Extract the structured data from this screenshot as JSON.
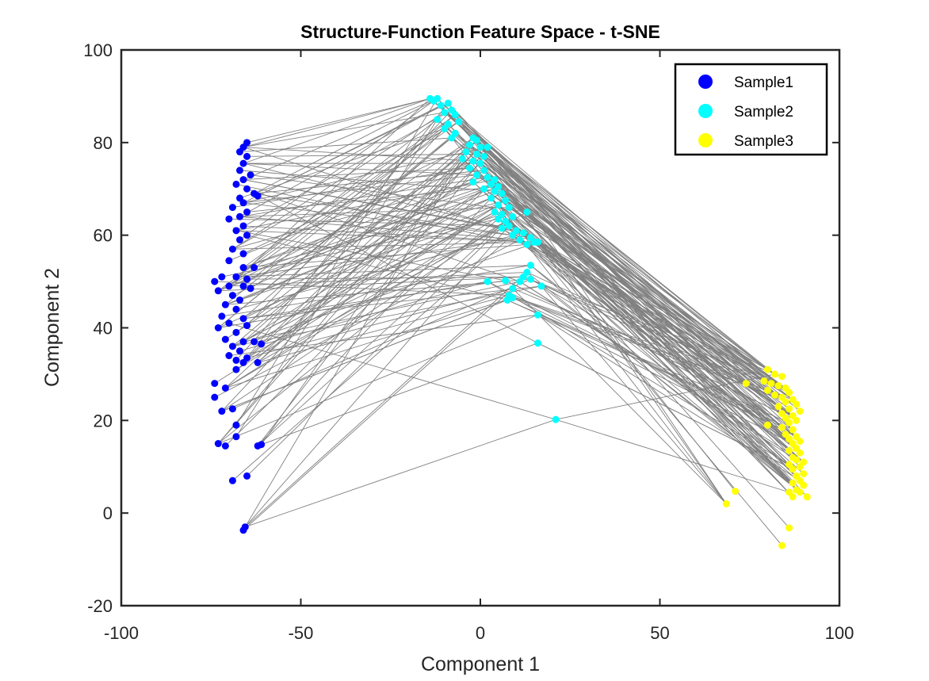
{
  "chart_data": {
    "type": "scatter",
    "title": "Structure-Function Feature Space - t-SNE",
    "xlabel": "Component 1",
    "ylabel": "Component 2",
    "xlim": [
      -100,
      100
    ],
    "ylim": [
      -20,
      100
    ],
    "xticks": [
      -100,
      -50,
      0,
      50,
      100
    ],
    "yticks": [
      -20,
      0,
      20,
      40,
      60,
      80,
      100
    ],
    "grid": false,
    "legend_position": "top-right",
    "connector_color": "#808080",
    "series": [
      {
        "name": "Sample1",
        "color": "#0000ff",
        "points": [
          [
            -65,
            80
          ],
          [
            -66,
            79
          ],
          [
            -67,
            78
          ],
          [
            -65,
            77
          ],
          [
            -66,
            75.5
          ],
          [
            -67,
            74
          ],
          [
            -64,
            73
          ],
          [
            -66,
            72
          ],
          [
            -68,
            71
          ],
          [
            -65,
            70
          ],
          [
            -63,
            69
          ],
          [
            -67,
            68
          ],
          [
            -62,
            68.5
          ],
          [
            -66,
            67
          ],
          [
            -69,
            66
          ],
          [
            -65,
            65
          ],
          [
            -67,
            64
          ],
          [
            -70,
            63.5
          ],
          [
            -66,
            62
          ],
          [
            -68,
            61
          ],
          [
            -65,
            60
          ],
          [
            -67,
            59
          ],
          [
            -69,
            57
          ],
          [
            -66,
            56
          ],
          [
            -70,
            54.5
          ],
          [
            -66,
            53
          ],
          [
            -63,
            53
          ],
          [
            -72,
            51
          ],
          [
            -68,
            51
          ],
          [
            -65,
            50.5
          ],
          [
            -74,
            50
          ],
          [
            -70,
            49
          ],
          [
            -66,
            49
          ],
          [
            -64,
            48.5
          ],
          [
            -73,
            48
          ],
          [
            -69,
            47
          ],
          [
            -67,
            46
          ],
          [
            -71,
            45
          ],
          [
            -68,
            44
          ],
          [
            -72,
            42.5
          ],
          [
            -66,
            42
          ],
          [
            -70,
            41
          ],
          [
            -65,
            40.5
          ],
          [
            -73,
            40
          ],
          [
            -68,
            39
          ],
          [
            -71,
            37.5
          ],
          [
            -66,
            37
          ],
          [
            -63,
            37
          ],
          [
            -61,
            36.5
          ],
          [
            -69,
            36
          ],
          [
            -67,
            35
          ],
          [
            -70,
            34
          ],
          [
            -65,
            33.5
          ],
          [
            -68,
            33
          ],
          [
            -66,
            32.5
          ],
          [
            -62,
            32.5
          ],
          [
            -68,
            31
          ],
          [
            -74,
            28
          ],
          [
            -71,
            27
          ],
          [
            -74,
            25
          ],
          [
            -72,
            22
          ],
          [
            -69,
            22.5
          ],
          [
            -68,
            19
          ],
          [
            -73,
            15
          ],
          [
            -71,
            14.5
          ],
          [
            -68,
            16.5
          ],
          [
            -62,
            14.5
          ],
          [
            -61,
            14.8
          ],
          [
            -65,
            8
          ],
          [
            -69,
            7
          ],
          [
            -65.5,
            -3
          ],
          [
            -66,
            -3.7
          ]
        ]
      },
      {
        "name": "Sample2",
        "color": "#00ffff",
        "points": [
          [
            -14,
            89.5
          ],
          [
            -13,
            89
          ],
          [
            -12,
            89.5
          ],
          [
            -11,
            88
          ],
          [
            -9,
            88.5
          ],
          [
            -8,
            87
          ],
          [
            -10,
            86.5
          ],
          [
            -7,
            86
          ],
          [
            -12,
            85
          ],
          [
            -9,
            84
          ],
          [
            -6,
            84.5
          ],
          [
            -10,
            83
          ],
          [
            -7,
            82
          ],
          [
            -8,
            81
          ],
          [
            -2,
            81
          ],
          [
            -1,
            80.5
          ],
          [
            -3,
            79.5
          ],
          [
            0,
            79
          ],
          [
            2,
            79
          ],
          [
            -4,
            78
          ],
          [
            -1,
            77.5
          ],
          [
            1,
            77
          ],
          [
            -5,
            76.5
          ],
          [
            -2,
            76
          ],
          [
            0,
            75.5
          ],
          [
            -3,
            74.5
          ],
          [
            1,
            74
          ],
          [
            -1,
            73
          ],
          [
            2,
            72.5
          ],
          [
            4,
            72
          ],
          [
            -2,
            71.5
          ],
          [
            3,
            71
          ],
          [
            5,
            70.5
          ],
          [
            1,
            70
          ],
          [
            4,
            69.5
          ],
          [
            6,
            69
          ],
          [
            3,
            68
          ],
          [
            7,
            67.5
          ],
          [
            5,
            66.5
          ],
          [
            8,
            66
          ],
          [
            4,
            65
          ],
          [
            6,
            64.5
          ],
          [
            9,
            64
          ],
          [
            5,
            63.5
          ],
          [
            7,
            63
          ],
          [
            13,
            65
          ],
          [
            8,
            62
          ],
          [
            6,
            61.5
          ],
          [
            10,
            61
          ],
          [
            12,
            60.5
          ],
          [
            9,
            60
          ],
          [
            14,
            59.5
          ],
          [
            11,
            59
          ],
          [
            15,
            58.5
          ],
          [
            16,
            58.5
          ],
          [
            13,
            58
          ],
          [
            14,
            53.5
          ],
          [
            13,
            52
          ],
          [
            12,
            51
          ],
          [
            14,
            50.5
          ],
          [
            2,
            50
          ],
          [
            7,
            50.2
          ],
          [
            11,
            50
          ],
          [
            17,
            49
          ],
          [
            9,
            48.5
          ],
          [
            8,
            47
          ],
          [
            9,
            46.5
          ],
          [
            7.5,
            46
          ],
          [
            16,
            42.8
          ],
          [
            16,
            36.7
          ],
          [
            21,
            20.2
          ]
        ]
      },
      {
        "name": "Sample3",
        "color": "#ffff00",
        "points": [
          [
            80,
            31
          ],
          [
            82,
            30
          ],
          [
            84,
            29.5
          ],
          [
            79,
            28.5
          ],
          [
            81,
            28
          ],
          [
            83,
            27.5
          ],
          [
            85,
            27
          ],
          [
            74,
            28
          ],
          [
            80,
            26.5
          ],
          [
            86,
            26
          ],
          [
            82,
            25.5
          ],
          [
            84,
            25
          ],
          [
            87,
            24.5
          ],
          [
            85,
            24
          ],
          [
            88,
            23.5
          ],
          [
            83,
            23
          ],
          [
            86,
            22.5
          ],
          [
            89,
            22
          ],
          [
            84,
            21.5
          ],
          [
            87,
            21
          ],
          [
            85,
            20.5
          ],
          [
            88,
            20
          ],
          [
            80,
            19
          ],
          [
            86,
            19.5
          ],
          [
            84,
            18.5
          ],
          [
            87,
            18
          ],
          [
            85,
            17
          ],
          [
            88,
            16.5
          ],
          [
            86,
            16
          ],
          [
            89,
            15.5
          ],
          [
            87,
            15
          ],
          [
            88,
            14
          ],
          [
            86,
            13.5
          ],
          [
            89,
            13
          ],
          [
            87,
            12
          ],
          [
            88,
            11.5
          ],
          [
            90,
            11
          ],
          [
            86,
            10.5
          ],
          [
            89,
            10
          ],
          [
            87,
            9.5
          ],
          [
            90,
            8.5
          ],
          [
            88,
            8
          ],
          [
            89,
            7
          ],
          [
            87,
            6.5
          ],
          [
            90,
            6
          ],
          [
            88,
            5
          ],
          [
            86,
            4.5
          ],
          [
            89,
            4.5
          ],
          [
            87,
            3.5
          ],
          [
            91,
            3.5
          ],
          [
            71,
            4.7
          ],
          [
            68.5,
            2
          ],
          [
            86,
            -3.2
          ],
          [
            84,
            -7
          ]
        ]
      }
    ]
  }
}
